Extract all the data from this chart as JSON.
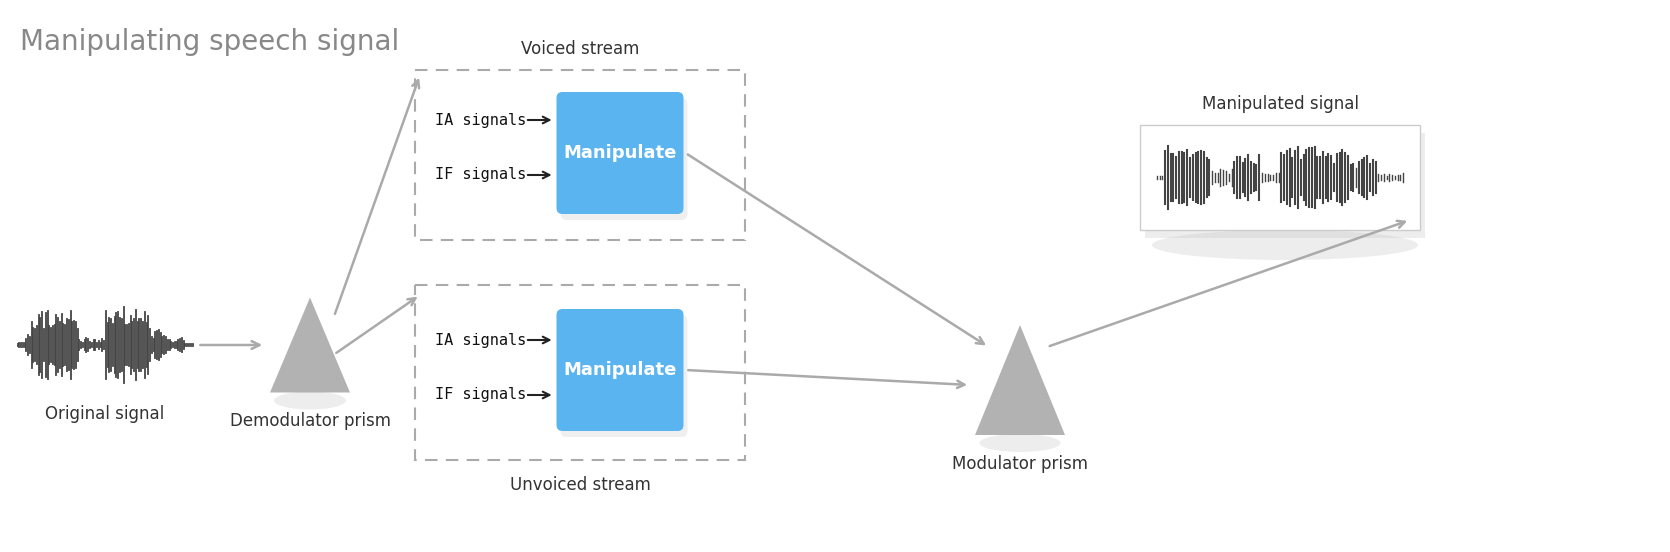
{
  "title": "Manipulating speech signal",
  "title_fontsize": 20,
  "title_color": "#888888",
  "background_color": "#ffffff",
  "voiced_stream_label": "Voiced stream",
  "unvoiced_stream_label": "Unvoiced stream",
  "original_signal_label": "Original signal",
  "demodulator_label": "Demodulator prism",
  "modulator_label": "Modulator prism",
  "manipulated_label": "Manipulated signal",
  "ia_label": "IA signals",
  "if_label": "IF signals",
  "manipulate_label": "Manipulate",
  "box_color": "#5ab4f0",
  "box_text_color": "#ffffff",
  "arrow_color": "#aaaaaa",
  "label_color": "#333333",
  "dashed_box_color": "#aaaaaa",
  "prism_color": "#aaaaaa",
  "signal_color": "#444444"
}
